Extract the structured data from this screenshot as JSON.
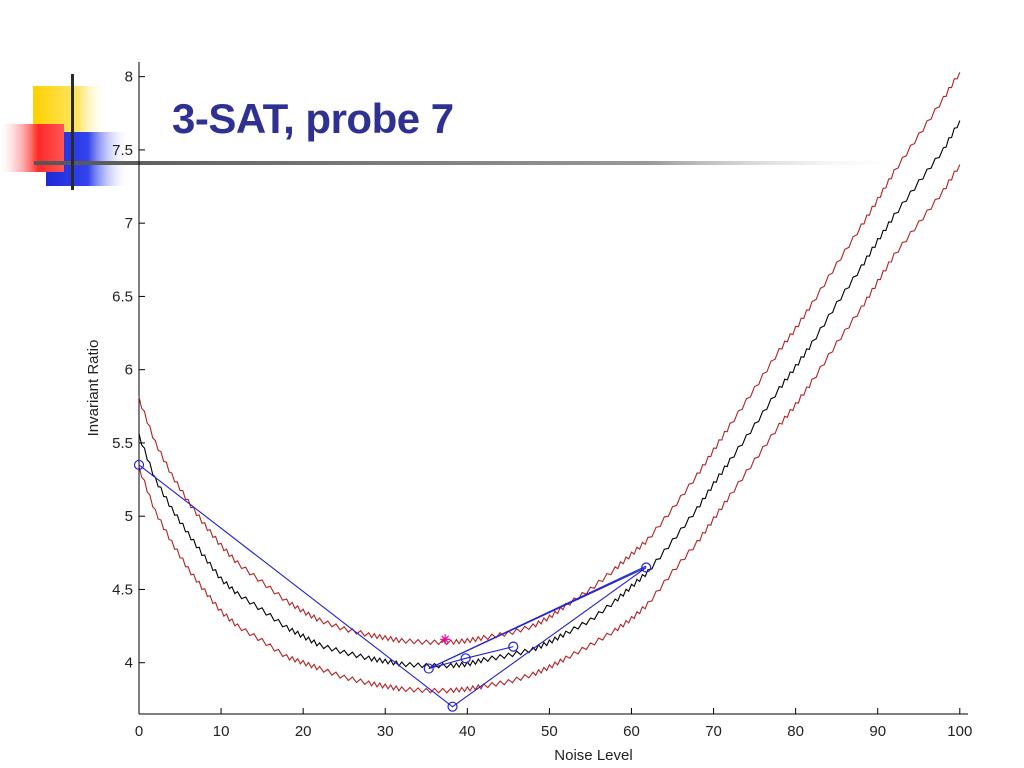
{
  "slide": {
    "title": "3-SAT, probe 7",
    "title_color": "#2e3192"
  },
  "chart_data": {
    "type": "line",
    "title": "",
    "xlabel": "Noise Level",
    "ylabel": "Invariant Ratio",
    "xlim": [
      0,
      101
    ],
    "ylim": [
      3.65,
      8.1
    ],
    "xticks": [
      0,
      10,
      20,
      30,
      40,
      50,
      60,
      70,
      80,
      90,
      100
    ],
    "yticks": [
      4,
      4.5,
      5,
      5.5,
      6,
      6.5,
      7,
      7.5,
      8
    ],
    "grid": false,
    "series": [
      {
        "style": "mean",
        "color": "#000000",
        "x": [
          0,
          2,
          4,
          6,
          8,
          10,
          12,
          15,
          18,
          20,
          22,
          25,
          28,
          30,
          32,
          35,
          38,
          40,
          42,
          45,
          48,
          50,
          52,
          55,
          58,
          60,
          62,
          65,
          68,
          70,
          72,
          75,
          78,
          80,
          82,
          85,
          88,
          90,
          92,
          95,
          98,
          100
        ],
        "y": [
          5.55,
          5.25,
          5.05,
          4.88,
          4.72,
          4.57,
          4.47,
          4.36,
          4.24,
          4.18,
          4.12,
          4.07,
          4.03,
          4.01,
          3.99,
          3.98,
          3.98,
          3.99,
          4.02,
          4.05,
          4.09,
          4.14,
          4.2,
          4.29,
          4.42,
          4.52,
          4.62,
          4.83,
          5.05,
          5.22,
          5.38,
          5.62,
          5.87,
          6.02,
          6.18,
          6.45,
          6.7,
          6.88,
          7.05,
          7.28,
          7.5,
          7.7
        ]
      },
      {
        "style": "upper-bound",
        "color": "#b22222",
        "x": [
          0,
          2,
          4,
          6,
          8,
          10,
          12,
          15,
          18,
          20,
          22,
          25,
          28,
          30,
          32,
          35,
          38,
          40,
          42,
          45,
          48,
          50,
          52,
          55,
          58,
          60,
          62,
          65,
          68,
          70,
          72,
          75,
          78,
          80,
          82,
          85,
          88,
          90,
          92,
          95,
          98,
          100
        ],
        "y": [
          5.8,
          5.5,
          5.28,
          5.1,
          4.94,
          4.8,
          4.68,
          4.55,
          4.42,
          4.35,
          4.29,
          4.23,
          4.19,
          4.17,
          4.15,
          4.14,
          4.14,
          4.15,
          4.17,
          4.2,
          4.25,
          4.31,
          4.39,
          4.5,
          4.64,
          4.74,
          4.84,
          5.05,
          5.28,
          5.45,
          5.62,
          5.87,
          6.13,
          6.28,
          6.45,
          6.72,
          6.98,
          7.16,
          7.35,
          7.6,
          7.85,
          8.03
        ]
      },
      {
        "style": "lower-bound",
        "color": "#b22222",
        "x": [
          0,
          2,
          4,
          6,
          8,
          10,
          12,
          15,
          18,
          20,
          22,
          25,
          28,
          30,
          32,
          35,
          38,
          40,
          42,
          45,
          48,
          50,
          52,
          55,
          58,
          60,
          62,
          65,
          68,
          70,
          72,
          75,
          78,
          80,
          82,
          85,
          88,
          90,
          92,
          95,
          98,
          100
        ],
        "y": [
          5.33,
          5.03,
          4.82,
          4.64,
          4.49,
          4.35,
          4.25,
          4.15,
          4.04,
          4.0,
          3.96,
          3.9,
          3.86,
          3.84,
          3.82,
          3.81,
          3.81,
          3.82,
          3.84,
          3.87,
          3.92,
          3.97,
          4.03,
          4.12,
          4.22,
          4.3,
          4.4,
          4.62,
          4.82,
          4.98,
          5.14,
          5.38,
          5.62,
          5.76,
          5.92,
          6.18,
          6.42,
          6.6,
          6.78,
          7.0,
          7.22,
          7.4
        ]
      },
      {
        "style": "probe-path",
        "color": "#2222cc",
        "x": [
          0,
          38.2,
          61.8,
          35.3,
          39.8,
          45.6
        ],
        "y": [
          5.35,
          3.7,
          4.65,
          3.96,
          4.03,
          4.11
        ]
      },
      {
        "style": "star-marker",
        "color": "#e0109a",
        "x": [
          37.3
        ],
        "y": [
          4.16
        ]
      }
    ],
    "extra_segments": [
      {
        "color": "#2222cc",
        "from": [
          35.3,
          3.96
        ],
        "to": [
          61.8,
          4.66
        ]
      }
    ]
  }
}
